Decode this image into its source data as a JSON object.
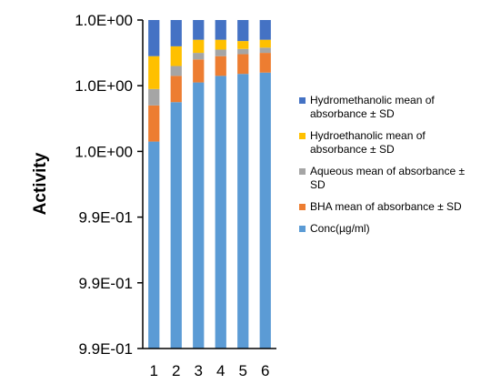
{
  "chart_data": {
    "type": "bar",
    "stacked": true,
    "title": "",
    "xlabel": "",
    "ylabel": "Activity",
    "categories": [
      "1",
      "2",
      "3",
      "4",
      "5",
      "6"
    ],
    "y_tick_labels": [
      "9.9E-01",
      "9.9E-01",
      "9.9E-01",
      "1.0E+00",
      "1.0E+00",
      "1.0E+00"
    ],
    "ylim": [
      0,
      5
    ],
    "grid": false,
    "legend_position": "right",
    "series": [
      {
        "name": "Conc(µg/ml)",
        "color": "#5B9BD5",
        "values": [
          3.15,
          3.75,
          4.05,
          4.15,
          4.18,
          4.2
        ]
      },
      {
        "name": "BHA mean  of absorbance ± SD",
        "color": "#ED7D31",
        "values": [
          0.55,
          0.4,
          0.35,
          0.3,
          0.3,
          0.3
        ]
      },
      {
        "name": "Aqueous mean of absorbance ± SD",
        "color": "#A5A5A5",
        "values": [
          0.25,
          0.15,
          0.1,
          0.1,
          0.08,
          0.08
        ]
      },
      {
        "name": "Hydroethanolic mean of absorbance ± SD",
        "color": "#FFC000",
        "values": [
          0.5,
          0.3,
          0.2,
          0.15,
          0.12,
          0.12
        ]
      },
      {
        "name": "Hydromethanolic mean of absorbance ± SD",
        "color": "#4472C4",
        "values": [
          0.55,
          0.4,
          0.3,
          0.3,
          0.32,
          0.3
        ]
      }
    ]
  }
}
